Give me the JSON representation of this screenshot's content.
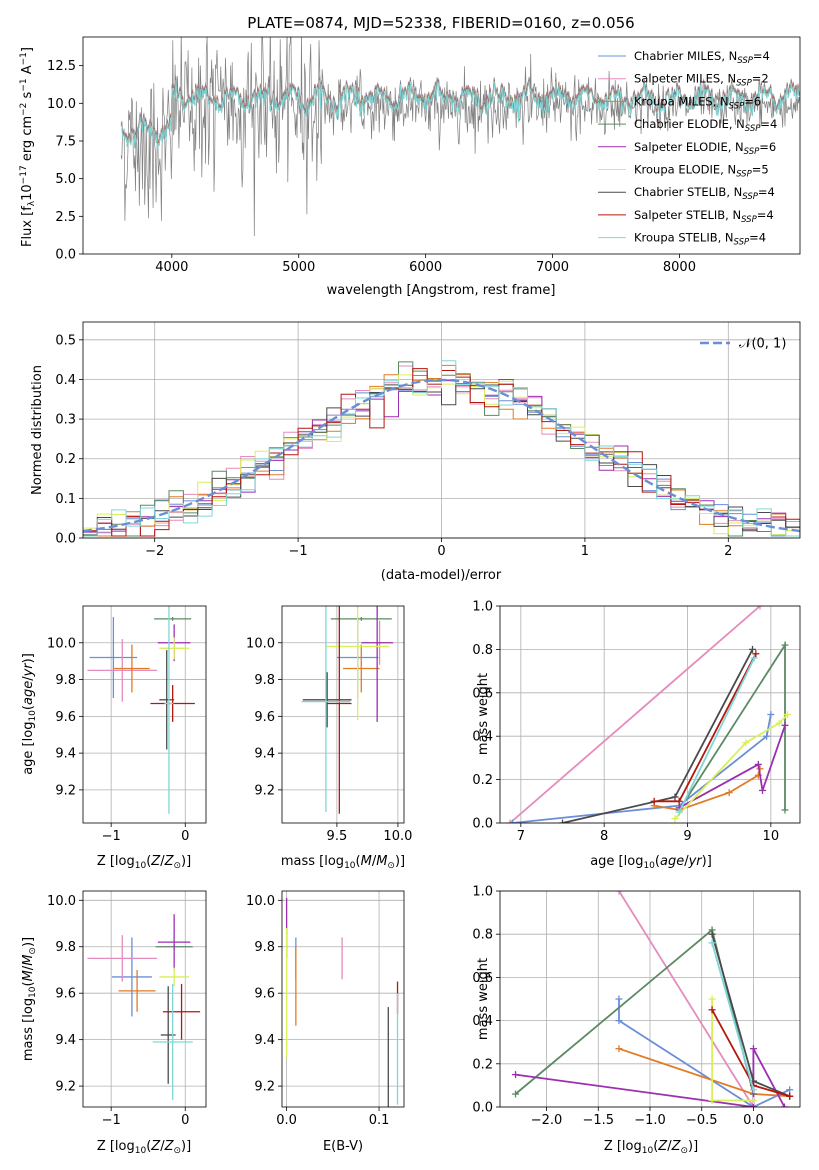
{
  "chart_data": [
    {
      "id": "spectrum",
      "type": "line",
      "title": "PLATE=0874, MJD=52338, FIBERID=0160, z=0.056",
      "xlabel": "wavelength [Angstrom, rest frame]",
      "ylabel": "Flux [fλ10⁻¹⁷ erg cm⁻² s⁻¹ A⁻¹]",
      "xlim": [
        3300,
        8950
      ],
      "ylim": [
        0,
        14.4
      ],
      "xticks": [
        4000,
        5000,
        6000,
        7000,
        8000
      ],
      "yticks": [
        0.0,
        2.5,
        5.0,
        7.5,
        10.0,
        12.5
      ],
      "xtick_labels": [
        "4000",
        "5000",
        "6000",
        "7000",
        "8000"
      ],
      "ytick_labels": [
        "0.0",
        "2.5",
        "5.0",
        "7.5",
        "10.0",
        "12.5"
      ],
      "grid": false,
      "legend_position": "right",
      "legend": [
        {
          "text": "Chabrier MILES, N",
          "sub": "SSP",
          "tail": "=4",
          "color": "#6a8fd8"
        },
        {
          "text": "Salpeter MILES, N",
          "sub": "SSP",
          "tail": "=2",
          "color": "#e58bbd"
        },
        {
          "text": "Kroupa MILES, N",
          "sub": "SSP",
          "tail": "=6",
          "color": "#e07b26"
        },
        {
          "text": "Chabrier ELODIE, N",
          "sub": "SSP",
          "tail": "=4",
          "color": "#5b8a64"
        },
        {
          "text": "Salpeter ELODIE, N",
          "sub": "SSP",
          "tail": "=6",
          "color": "#9b2fb1"
        },
        {
          "text": "Kroupa ELODIE, N",
          "sub": "SSP",
          "tail": "=5",
          "color": "#d9ef5c"
        },
        {
          "text": "Chabrier STELIB, N",
          "sub": "SSP",
          "tail": "=4",
          "color": "#4a4a4a"
        },
        {
          "text": "Salpeter STELIB, N",
          "sub": "SSP",
          "tail": "=4",
          "color": "#b5170f"
        },
        {
          "text": "Kroupa STELIB, N",
          "sub": "SSP",
          "tail": "=4",
          "color": "#7fd6d8"
        }
      ],
      "series": [
        {
          "name": "data",
          "color": "#7f7f7f",
          "x_range": [
            3600,
            8950
          ],
          "level": 9.8,
          "noise_blue": 5.5,
          "noise_red": 3.5
        },
        {
          "name": "model",
          "color": "#7fd6d8",
          "x_range": [
            3600,
            8950
          ],
          "level": 10.4
        }
      ]
    },
    {
      "id": "residuals",
      "type": "histogram",
      "xlabel": "(data-model)/error",
      "ylabel": "Normed distribution",
      "xlim": [
        -2.5,
        2.5
      ],
      "ylim": [
        0,
        0.545
      ],
      "xticks": [
        -2,
        -1,
        0,
        1,
        2
      ],
      "yticks": [
        0.0,
        0.1,
        0.2,
        0.3,
        0.4,
        0.5
      ],
      "xtick_labels": [
        "−2",
        "−1",
        "0",
        "1",
        "2"
      ],
      "ytick_labels": [
        "0.0",
        "0.1",
        "0.2",
        "0.3",
        "0.4",
        "0.5"
      ],
      "grid": true,
      "legend_position": "top-right",
      "legend": [
        {
          "text": "𝒩(0, 1)",
          "color": "#6a8fd8",
          "dashed": true
        }
      ],
      "bin_width": 0.1,
      "reference_curve": {
        "mean": 0,
        "sigma": 1
      }
    },
    {
      "id": "age-vs-metallicity",
      "type": "scatter",
      "xlabel": "Z [log₁₀(Z/Z⊙)]",
      "ylabel": "age  [log₁₀(age/yr)]",
      "xlim": [
        -1.38,
        0.28
      ],
      "ylim": [
        9.02,
        10.2
      ],
      "xticks": [
        -1,
        0
      ],
      "yticks": [
        9.2,
        9.4,
        9.6,
        9.8,
        10.0
      ],
      "xtick_labels": [
        "−1",
        "0"
      ],
      "ytick_labels": [
        "9.2",
        "9.4",
        "9.6",
        "9.8",
        "10.0"
      ],
      "grid": true,
      "points": [
        {
          "x": -0.97,
          "y": 9.92,
          "xerr": 0.32,
          "yerr": 0.22,
          "color": "#6a8fd8"
        },
        {
          "x": -0.85,
          "y": 9.85,
          "xerr": 0.47,
          "yerr": 0.17,
          "color": "#e58bbd"
        },
        {
          "x": -0.72,
          "y": 9.86,
          "xerr": 0.24,
          "yerr": 0.13,
          "color": "#e07b26"
        },
        {
          "x": -0.17,
          "y": 10.13,
          "xerr": 0.25,
          "yerr": 0.01,
          "color": "#5b8a64"
        },
        {
          "x": -0.15,
          "y": 10.0,
          "xerr": 0.22,
          "yerr": 0.1,
          "color": "#9b2fb1"
        },
        {
          "x": -0.15,
          "y": 9.97,
          "xerr": 0.2,
          "yerr": 0.06,
          "color": "#d9ef5c"
        },
        {
          "x": -0.25,
          "y": 9.69,
          "xerr": 0.1,
          "yerr": 0.27,
          "color": "#4a4a4a"
        },
        {
          "x": -0.17,
          "y": 9.67,
          "xerr": 0.3,
          "yerr": 0.1,
          "color": "#b5170f"
        },
        {
          "x": -0.22,
          "y": 9.67,
          "xerr": 0.06,
          "yerr": 0.6,
          "color": "#7fd6d8"
        }
      ]
    },
    {
      "id": "age-vs-mass",
      "type": "scatter",
      "xlabel": "mass [log₁₀(M/M⊙)]",
      "ylabel": "",
      "xlim": [
        9.05,
        10.05
      ],
      "ylim": [
        9.02,
        10.2
      ],
      "xticks": [
        9.5,
        10.0
      ],
      "yticks": [
        9.2,
        9.4,
        9.6,
        9.8,
        10.0
      ],
      "xtick_labels": [
        "9.5",
        "10.0"
      ],
      "ytick_labels": [
        "9.2",
        "9.4",
        "9.6",
        "9.8",
        "10.0"
      ],
      "grid": true,
      "points": [
        {
          "x": 9.67,
          "y": 9.92,
          "xerr": 0.17,
          "yerr": 0.22,
          "color": "#6a8fd8"
        },
        {
          "x": 9.85,
          "y": 10.0,
          "xerr": 0.03,
          "yerr": 0.12,
          "color": "#e58bbd"
        },
        {
          "x": 9.7,
          "y": 9.86,
          "xerr": 0.15,
          "yerr": 0.13,
          "color": "#e07b26"
        },
        {
          "x": 9.7,
          "y": 10.13,
          "xerr": 0.25,
          "yerr": 0.01,
          "color": "#5b8a64"
        },
        {
          "x": 9.83,
          "y": 10.0,
          "xerr": 0.13,
          "yerr": 0.43,
          "color": "#9b2fb1"
        },
        {
          "x": 9.67,
          "y": 9.98,
          "xerr": 0.26,
          "yerr": 0.4,
          "color": "#d9ef5c"
        },
        {
          "x": 9.42,
          "y": 9.69,
          "xerr": 0.2,
          "yerr": 0.15,
          "color": "#4a4a4a"
        },
        {
          "x": 9.52,
          "y": 9.67,
          "xerr": 0.1,
          "yerr": 0.6,
          "color": "#b5170f"
        },
        {
          "x": 9.41,
          "y": 9.68,
          "xerr": 0.2,
          "yerr": 0.6,
          "color": "#7fd6d8"
        }
      ]
    },
    {
      "id": "weight-vs-age",
      "type": "line",
      "xlabel": "age  [log₁₀(age/yr)]",
      "ylabel": "mass weight",
      "xlim": [
        6.75,
        10.35
      ],
      "ylim": [
        0,
        1.0
      ],
      "xticks": [
        7,
        8,
        9,
        10
      ],
      "yticks": [
        0.0,
        0.2,
        0.4,
        0.6,
        0.8,
        1.0
      ],
      "xtick_labels": [
        "7",
        "8",
        "9",
        "10"
      ],
      "ytick_labels": [
        "0.0",
        "0.2",
        "0.4",
        "0.6",
        "0.8",
        "1.0"
      ],
      "grid": true,
      "series": [
        {
          "name": "Salpeter MILES",
          "color": "#e58bbd",
          "x": [
            6.87,
            9.87
          ],
          "y": [
            0.0,
            1.0
          ]
        },
        {
          "name": "Chabrier MILES",
          "color": "#6a8fd8",
          "x": [
            6.9,
            8.9,
            9.95,
            10.0
          ],
          "y": [
            0.0,
            0.08,
            0.4,
            0.5
          ]
        },
        {
          "name": "Kroupa MILES",
          "color": "#e07b26",
          "x": [
            8.6,
            8.9,
            9.5,
            9.85,
            9.87
          ],
          "y": [
            0.08,
            0.06,
            0.14,
            0.22,
            0.25
          ]
        },
        {
          "name": "Chabrier ELODIE",
          "color": "#5b8a64",
          "x": [
            8.9,
            10.17,
            10.17
          ],
          "y": [
            0.06,
            0.82,
            0.06
          ]
        },
        {
          "name": "Salpeter ELODIE",
          "color": "#9b2fb1",
          "x": [
            8.9,
            9.85,
            9.9,
            10.17
          ],
          "y": [
            0.07,
            0.27,
            0.15,
            0.45
          ]
        },
        {
          "name": "Kroupa ELODIE",
          "color": "#d9ef5c",
          "x": [
            8.85,
            9.7,
            10.1,
            10.2
          ],
          "y": [
            0.02,
            0.37,
            0.46,
            0.5
          ]
        },
        {
          "name": "Chabrier STELIB",
          "color": "#4a4a4a",
          "x": [
            7.5,
            8.85,
            9.78
          ],
          "y": [
            0.0,
            0.12,
            0.8
          ]
        },
        {
          "name": "Salpeter STELIB",
          "color": "#b5170f",
          "x": [
            8.6,
            8.9,
            9.82
          ],
          "y": [
            0.1,
            0.1,
            0.78
          ]
        },
        {
          "name": "Kroupa STELIB",
          "color": "#7fd6d8",
          "x": [
            8.9,
            9.8
          ],
          "y": [
            0.05,
            0.76
          ]
        }
      ]
    },
    {
      "id": "mass-vs-metallicity",
      "type": "scatter",
      "xlabel": "Z [log₁₀(Z/Z⊙)]",
      "ylabel": "mass [log₁₀(M/M⊙)]",
      "xlim": [
        -1.38,
        0.28
      ],
      "ylim": [
        9.11,
        10.04
      ],
      "xticks": [
        -1,
        0
      ],
      "yticks": [
        9.2,
        9.4,
        9.6,
        9.8,
        10.0
      ],
      "xtick_labels": [
        "−1",
        "0"
      ],
      "ytick_labels": [
        "9.2",
        "9.4",
        "9.6",
        "9.8",
        "10.0"
      ],
      "grid": true,
      "points": [
        {
          "x": -0.72,
          "y": 9.67,
          "xerr": 0.27,
          "yerr": 0.17,
          "color": "#6a8fd8"
        },
        {
          "x": -0.85,
          "y": 9.75,
          "xerr": 0.47,
          "yerr": 0.1,
          "color": "#e58bbd"
        },
        {
          "x": -0.65,
          "y": 9.61,
          "xerr": 0.25,
          "yerr": 0.09,
          "color": "#e07b26"
        },
        {
          "x": -0.15,
          "y": 9.8,
          "xerr": 0.25,
          "yerr": 0.01,
          "color": "#5b8a64"
        },
        {
          "x": -0.15,
          "y": 9.82,
          "xerr": 0.22,
          "yerr": 0.12,
          "color": "#9b2fb1"
        },
        {
          "x": -0.15,
          "y": 9.67,
          "xerr": 0.2,
          "yerr": 0.04,
          "color": "#d9ef5c"
        },
        {
          "x": -0.23,
          "y": 9.42,
          "xerr": 0.1,
          "yerr": 0.21,
          "color": "#4a4a4a"
        },
        {
          "x": -0.05,
          "y": 9.52,
          "xerr": 0.25,
          "yerr": 0.12,
          "color": "#b5170f"
        },
        {
          "x": -0.17,
          "y": 9.39,
          "xerr": 0.27,
          "yerr": 0.25,
          "color": "#7fd6d8"
        }
      ]
    },
    {
      "id": "mass-vs-extinction",
      "type": "scatter",
      "xlabel": "E(B-V)",
      "ylabel": "",
      "xlim": [
        -0.005,
        0.127
      ],
      "ylim": [
        9.11,
        10.04
      ],
      "xticks": [
        0.0,
        0.1
      ],
      "yticks": [
        9.2,
        9.4,
        9.6,
        9.8,
        10.0
      ],
      "xtick_labels": [
        "0.0",
        "0.1"
      ],
      "ytick_labels": [
        "9.2",
        "9.4",
        "9.6",
        "9.8",
        "10.0"
      ],
      "grid": true,
      "points": [
        {
          "x": 0.01,
          "y": 9.75,
          "yerr": 0.09,
          "color": "#6a8fd8"
        },
        {
          "x": 0.06,
          "y": 9.75,
          "yerr": 0.09,
          "color": "#e58bbd"
        },
        {
          "x": 0.01,
          "y": 9.63,
          "yerr": 0.17,
          "color": "#e07b26"
        },
        {
          "x": 0.0,
          "y": 9.8,
          "yerr": 0.05,
          "color": "#5b8a64"
        },
        {
          "x": 0.0,
          "y": 9.93,
          "yerr": 0.08,
          "color": "#9b2fb1"
        },
        {
          "x": 0.0,
          "y": 9.6,
          "yerr": 0.28,
          "color": "#d9ef5c"
        },
        {
          "x": 0.11,
          "y": 9.31,
          "yerr": 0.23,
          "color": "#4a4a4a"
        },
        {
          "x": 0.12,
          "y": 9.58,
          "yerr": 0.07,
          "color": "#b5170f"
        },
        {
          "x": 0.12,
          "y": 9.36,
          "yerr": 0.24,
          "color": "#7fd6d8"
        }
      ]
    },
    {
      "id": "weight-vs-metallicity",
      "type": "line",
      "xlabel": "Z [log₁₀(Z/Z⊙)]",
      "ylabel": "mass weight",
      "xlim": [
        -2.45,
        0.45
      ],
      "ylim": [
        0,
        1.0
      ],
      "xticks": [
        -2.0,
        -1.5,
        -1.0,
        -0.5,
        0.0
      ],
      "yticks": [
        0.0,
        0.2,
        0.4,
        0.6,
        0.8,
        1.0
      ],
      "xtick_labels": [
        "−2.0",
        "−1.5",
        "−1.0",
        "−0.5",
        "0.0"
      ],
      "ytick_labels": [
        "0.0",
        "0.2",
        "0.4",
        "0.6",
        "0.8",
        "1.0"
      ],
      "grid": true,
      "series": [
        {
          "name": "Salpeter MILES",
          "color": "#e58bbd",
          "x": [
            -1.3,
            0.0
          ],
          "y": [
            1.0,
            0.0
          ]
        },
        {
          "name": "Chabrier MILES",
          "color": "#6a8fd8",
          "x": [
            -1.3,
            -1.3,
            0.0,
            0.35
          ],
          "y": [
            0.5,
            0.4,
            0.0,
            0.08
          ]
        },
        {
          "name": "Kroupa MILES",
          "color": "#e07b26",
          "x": [
            -1.3,
            0.0,
            0.35
          ],
          "y": [
            0.27,
            0.06,
            0.05
          ]
        },
        {
          "name": "Chabrier ELODIE",
          "color": "#5b8a64",
          "x": [
            -2.3,
            -0.4,
            0.0
          ],
          "y": [
            0.06,
            0.82,
            0.06
          ]
        },
        {
          "name": "Salpeter ELODIE",
          "color": "#9b2fb1",
          "x": [
            -2.3,
            0.0,
            0.0,
            0.3
          ],
          "y": [
            0.15,
            0.0,
            0.27,
            0.0
          ]
        },
        {
          "name": "Kroupa ELODIE",
          "color": "#d9ef5c",
          "x": [
            -0.4,
            -0.4,
            0.0
          ],
          "y": [
            0.5,
            0.03,
            0.03
          ]
        },
        {
          "name": "Chabrier STELIB",
          "color": "#4a4a4a",
          "x": [
            -0.4,
            0.0,
            0.35
          ],
          "y": [
            0.8,
            0.12,
            0.05
          ]
        },
        {
          "name": "Salpeter STELIB",
          "color": "#b5170f",
          "x": [
            -0.4,
            0.0,
            0.35
          ],
          "y": [
            0.45,
            0.1,
            0.05
          ]
        },
        {
          "name": "Kroupa STELIB",
          "color": "#7fd6d8",
          "x": [
            -0.4,
            0.0
          ],
          "y": [
            0.76,
            0.08
          ]
        }
      ]
    }
  ]
}
